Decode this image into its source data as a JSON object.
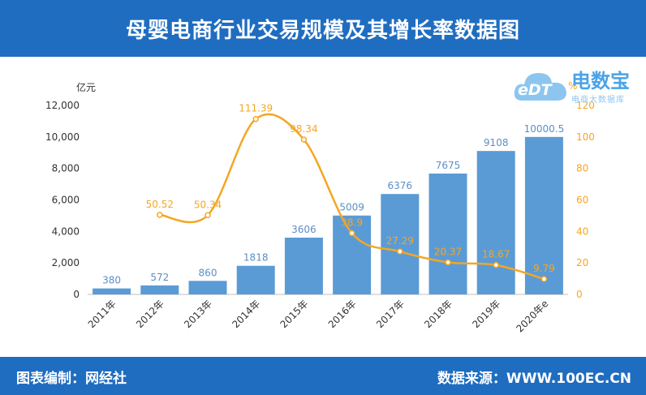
{
  "header": {
    "title": "母婴电商行业交易规模及其增长率数据图"
  },
  "footer": {
    "left": "图表编制：网经社",
    "right": "数据来源：WWW.100EC.CN"
  },
  "logo": {
    "main": "电数宝",
    "sub": "电商大数据库",
    "badge": "eDT"
  },
  "colors": {
    "header_bg": "#1f6dc1",
    "bar": "#5b9bd5",
    "line": "#f5a623",
    "bar_label": "#5b8fc7",
    "line_label": "#f5a623"
  },
  "chart_data": {
    "type": "bar",
    "categories": [
      "2011年",
      "2012年",
      "2013年",
      "2014年",
      "2015年",
      "2016年",
      "2017年",
      "2018年",
      "2019年",
      "2020年e"
    ],
    "series": [
      {
        "name": "",
        "type": "bar",
        "axis": "left",
        "values": [
          380,
          572,
          860,
          1818,
          3606,
          5009,
          6376,
          7675,
          9108,
          10000.5
        ],
        "labels": [
          "380",
          "572",
          "860",
          "1818",
          "3606",
          "5009",
          "6376",
          "7675",
          "9108",
          "10000.5"
        ]
      },
      {
        "name": "",
        "type": "line",
        "axis": "right",
        "values": [
          null,
          50.52,
          50.34,
          111.39,
          98.34,
          38.9,
          27.29,
          20.37,
          18.67,
          9.79
        ],
        "labels": [
          "",
          "50.52",
          "50.34",
          "111.39",
          "98.34",
          "38.9",
          "27.29",
          "20.37",
          "18.67",
          "9.79"
        ]
      }
    ],
    "ylabel_left": "亿元",
    "ylabel_right": "%",
    "ylim_left": [
      0,
      12000
    ],
    "ylim_right": [
      0,
      120
    ],
    "yticks_left": [
      "0",
      "2,000",
      "4,000",
      "6,000",
      "8,000",
      "10,000",
      "12,000"
    ],
    "yticks_right": [
      "0",
      "20",
      "40",
      "60",
      "80",
      "100",
      "120"
    ],
    "grid": false
  }
}
